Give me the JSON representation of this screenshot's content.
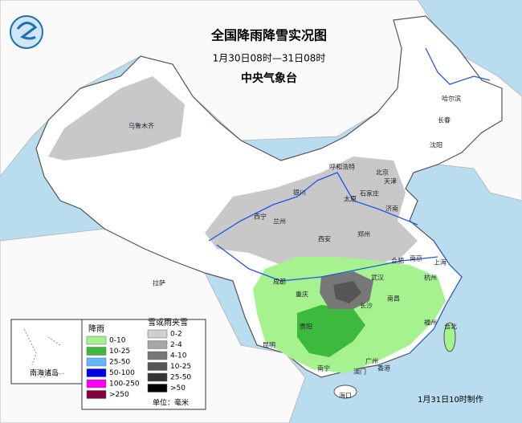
{
  "header": {
    "title": "全国降雨降雪实况图",
    "subtitle": "1月30日08时—31日08时",
    "issuer": "中央气象台"
  },
  "cities": [
    "乌鲁木齐",
    "哈尔滨",
    "长春",
    "沈阳",
    "呼和浩特",
    "北京",
    "天津",
    "石家庄",
    "太原",
    "银川",
    "西宁",
    "兰州",
    "济南",
    "郑州",
    "西安",
    "合肥",
    "南京",
    "上海",
    "杭州",
    "武汉",
    "成都",
    "重庆",
    "长沙",
    "南昌",
    "福州",
    "台北",
    "贵阳",
    "昆明",
    "南宁",
    "广州",
    "香港",
    "澳门",
    "海口",
    "拉萨"
  ],
  "inset": {
    "label": "南海诸岛"
  },
  "legend": {
    "rain": {
      "title": "降雨",
      "items": [
        {
          "label": "0-10",
          "color": "#a6f28f"
        },
        {
          "label": "10-25",
          "color": "#3dba3d"
        },
        {
          "label": "25-50",
          "color": "#61b8ff"
        },
        {
          "label": "50-100",
          "color": "#0000e1"
        },
        {
          "label": "100-250",
          "color": "#fa00fa"
        },
        {
          "label": ">250",
          "color": "#800040"
        }
      ]
    },
    "snow": {
      "title": "雪或雨夹雪",
      "items": [
        {
          "label": "0-2",
          "color": "#d0d0d0"
        },
        {
          "label": "2-4",
          "color": "#a6a6a6"
        },
        {
          "label": "4-10",
          "color": "#777777"
        },
        {
          "label": "10-25",
          "color": "#555555"
        },
        {
          "label": "25-50",
          "color": "#333333"
        },
        {
          "label": ">50",
          "color": "#000000"
        }
      ]
    },
    "unit": "单位：毫米"
  },
  "footer": "1月31日10时制作"
}
